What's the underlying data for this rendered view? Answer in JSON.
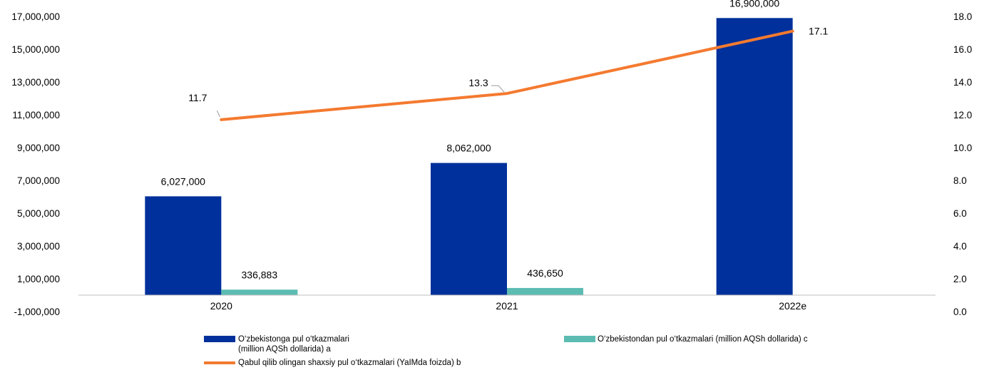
{
  "colors": {
    "series_a": "#00309b",
    "series_c": "#5cbcb2",
    "series_b": "#f47a30",
    "axis": "#bfbfbf",
    "leader": "#9a9a9a"
  },
  "chart_data": {
    "type": "bar",
    "categories": [
      "2020",
      "2021",
      "2022e"
    ],
    "series": [
      {
        "name": "O‘zbekistonga pul o‘tkazmalari (million AQSh dollarida) a",
        "type": "bar",
        "axis": "left",
        "values": [
          6027000,
          8062000,
          16900000
        ],
        "labels": [
          "6,027,000",
          "8,062,000",
          "16,900,000"
        ]
      },
      {
        "name": "O‘zbekistondan pul o‘tkazmalari (million AQSh dollarida) c",
        "type": "bar",
        "axis": "left",
        "values": [
          336883,
          436650,
          null
        ],
        "labels": [
          "336,883",
          "436,650",
          ""
        ]
      },
      {
        "name": "Qabul qilib olingan shaxsiy pul o‘tkazmalari (YaIMda foizda) b",
        "type": "line",
        "axis": "right",
        "values": [
          11.7,
          13.3,
          17.1
        ],
        "labels": [
          "11.7",
          "13.3",
          "17.1"
        ]
      }
    ],
    "y_left": {
      "range": [
        -1000000,
        17000000
      ],
      "ticks": [
        -1000000,
        1000000,
        3000000,
        5000000,
        7000000,
        9000000,
        11000000,
        13000000,
        15000000,
        17000000
      ],
      "tick_labels": [
        "-1,000,000",
        "1,000,000",
        "3,000,000",
        "5,000,000",
        "7,000,000",
        "9,000,000",
        "11,000,000",
        "13,000,000",
        "15,000,000",
        "17,000,000"
      ]
    },
    "y_right": {
      "range": [
        0,
        18
      ],
      "ticks": [
        0,
        2,
        4,
        6,
        8,
        10,
        12,
        14,
        16,
        18
      ],
      "tick_labels": [
        "0.0",
        "2.0",
        "4.0",
        "6.0",
        "8.0",
        "10.0",
        "12.0",
        "14.0",
        "16.0",
        "18.0"
      ]
    },
    "grid": false,
    "legend_position": "bottom"
  },
  "legend": {
    "a_line1": "O‘zbekistonga pul o‘tkazmalari",
    "a_line2": "(million AQSh dollarida) a",
    "c": "O‘zbekistondan pul o‘tkazmalari (million AQSh dollarida) c",
    "b": "Qabul qilib olingan shaxsiy pul o‘tkazmalari (YaIMda foizda) b"
  }
}
